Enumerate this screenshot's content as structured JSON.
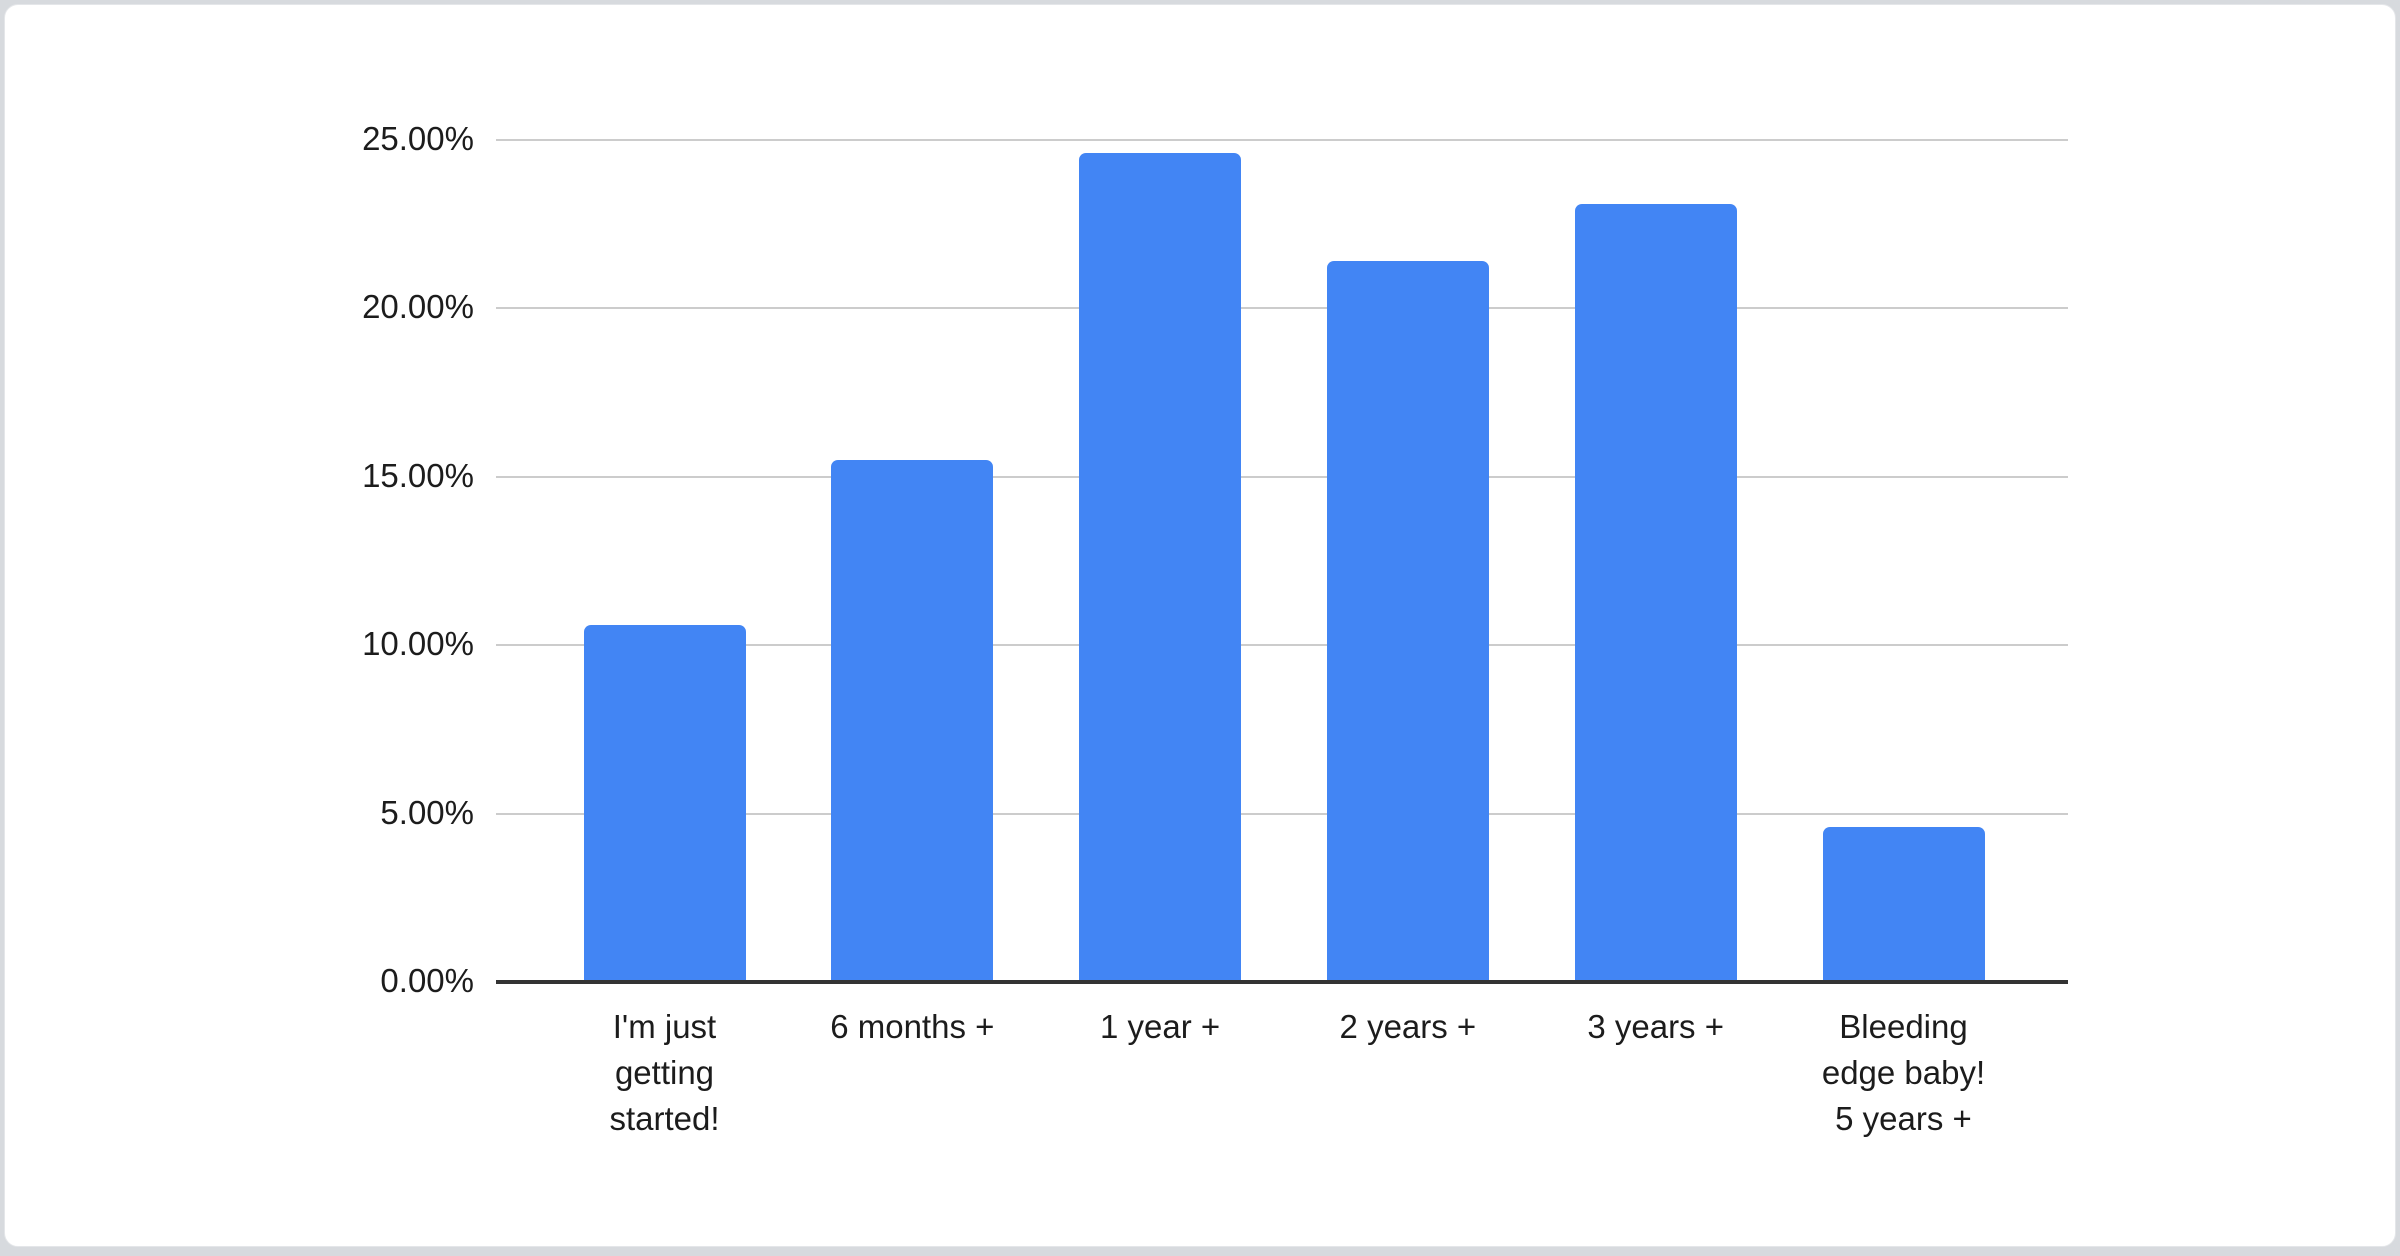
{
  "page": {
    "background_color": "#d7dade",
    "card_background_color": "#ffffff"
  },
  "chart_data": {
    "type": "bar",
    "title": "",
    "xlabel": "",
    "ylabel": "",
    "categories": [
      "I'm just\ngetting\nstarted!",
      "6 months +",
      "1 year +",
      "2 years +",
      "3 years +",
      "Bleeding\nedge baby!\n5 years +"
    ],
    "values": [
      10.6,
      15.5,
      24.6,
      21.4,
      23.1,
      4.6
    ],
    "value_unit": "percent",
    "y_ticks": [
      "0.00%",
      "5.00%",
      "10.00%",
      "15.00%",
      "20.00%",
      "25.00%"
    ],
    "y_tick_values": [
      0,
      5,
      10,
      15,
      20,
      25
    ],
    "ylim": [
      0,
      25
    ],
    "grid": true,
    "legend_position": "none",
    "bar_color": "#4285f4",
    "gridline_color": "#cccccc",
    "axis_line_color": "#333333",
    "label_color": "#1c1c1c"
  }
}
